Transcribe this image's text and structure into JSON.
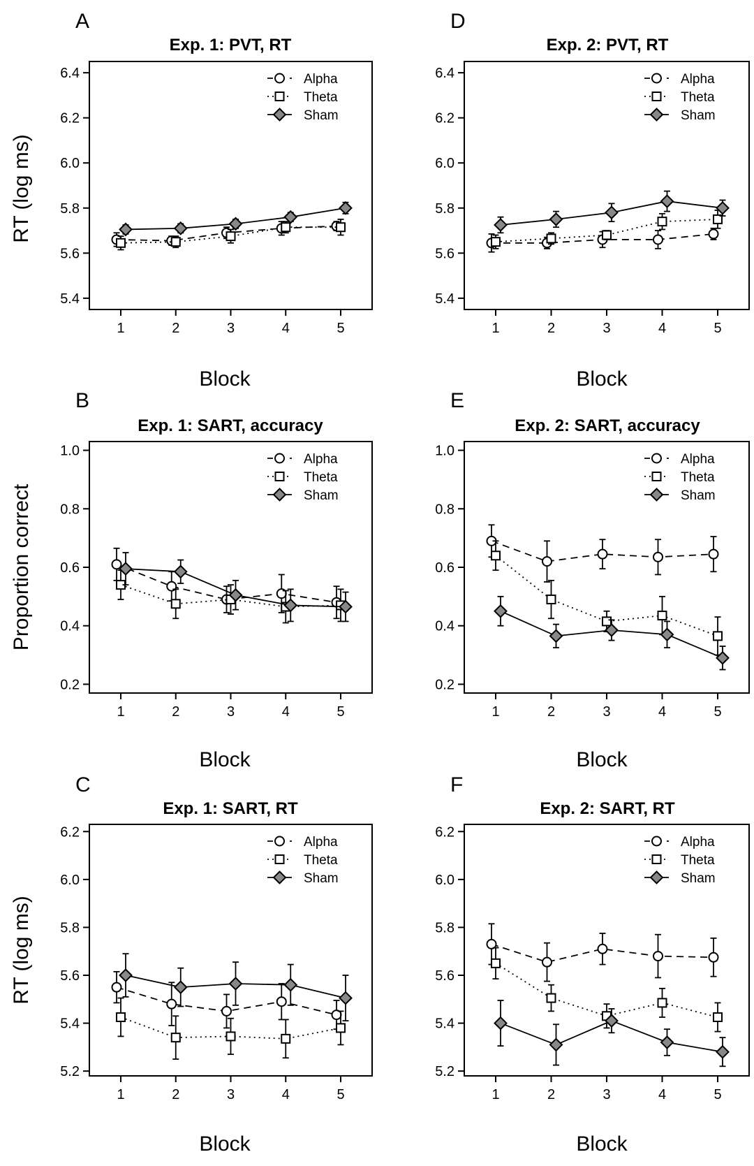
{
  "figure_colors": {
    "sham_fill": "#888888",
    "open_fill": "#ffffff",
    "stroke": "#000000"
  },
  "chart_data": [
    {
      "panel_label": "A",
      "type": "line",
      "title": "Exp. 1: PVT, RT",
      "xlabel": "Block",
      "ylabel": "RT (log ms)",
      "x": [
        1,
        2,
        3,
        4,
        5
      ],
      "xticks": [
        "1",
        "2",
        "3",
        "4",
        "5"
      ],
      "ylim": [
        5.35,
        6.45
      ],
      "yticks": [
        "5.4",
        "5.6",
        "5.8",
        "6.0",
        "6.2",
        "6.4"
      ],
      "legend_position": "top-right",
      "series": [
        {
          "name": "Alpha",
          "marker": "circle",
          "line": "dashed",
          "values": [
            5.66,
            5.655,
            5.69,
            5.71,
            5.72
          ],
          "err": [
            0.03,
            0.02,
            0.025,
            0.03,
            0.02
          ]
        },
        {
          "name": "Theta",
          "marker": "square",
          "line": "dotted",
          "values": [
            5.645,
            5.65,
            5.675,
            5.715,
            5.715
          ],
          "err": [
            0.03,
            0.025,
            0.03,
            0.025,
            0.035
          ]
        },
        {
          "name": "Sham",
          "marker": "diamond",
          "line": "solid",
          "values": [
            5.705,
            5.71,
            5.73,
            5.76,
            5.8
          ],
          "err": [
            0.02,
            0.02,
            0.02,
            0.02,
            0.025
          ]
        }
      ]
    },
    {
      "panel_label": "B",
      "type": "line",
      "title": "Exp. 1: SART, accuracy",
      "xlabel": "Block",
      "ylabel": "Proportion correct",
      "x": [
        1,
        2,
        3,
        4,
        5
      ],
      "xticks": [
        "1",
        "2",
        "3",
        "4",
        "5"
      ],
      "ylim": [
        0.17,
        1.03
      ],
      "yticks": [
        "0.2",
        "0.4",
        "0.6",
        "0.8",
        "1.0"
      ],
      "legend_position": "top-right",
      "series": [
        {
          "name": "Alpha",
          "marker": "circle",
          "line": "dashed",
          "values": [
            0.61,
            0.535,
            0.49,
            0.51,
            0.48
          ],
          "err": [
            0.055,
            0.05,
            0.045,
            0.065,
            0.055
          ]
        },
        {
          "name": "Theta",
          "marker": "square",
          "line": "dotted",
          "values": [
            0.54,
            0.475,
            0.49,
            0.465,
            0.47
          ],
          "err": [
            0.05,
            0.05,
            0.05,
            0.055,
            0.055
          ]
        },
        {
          "name": "Sham",
          "marker": "diamond",
          "line": "solid",
          "values": [
            0.595,
            0.585,
            0.505,
            0.47,
            0.465
          ],
          "err": [
            0.055,
            0.04,
            0.05,
            0.055,
            0.05
          ]
        }
      ]
    },
    {
      "panel_label": "C",
      "type": "line",
      "title": "Exp. 1: SART, RT",
      "xlabel": "Block",
      "ylabel": "RT (log ms)",
      "x": [
        1,
        2,
        3,
        4,
        5
      ],
      "xticks": [
        "1",
        "2",
        "3",
        "4",
        "5"
      ],
      "ylim": [
        5.18,
        6.23
      ],
      "yticks": [
        "5.2",
        "5.4",
        "5.6",
        "5.8",
        "6.0",
        "6.2"
      ],
      "legend_position": "top-right",
      "series": [
        {
          "name": "Alpha",
          "marker": "circle",
          "line": "dashed",
          "values": [
            5.55,
            5.48,
            5.45,
            5.49,
            5.435
          ],
          "err": [
            0.065,
            0.09,
            0.07,
            0.075,
            0.06
          ]
        },
        {
          "name": "Theta",
          "marker": "square",
          "line": "dotted",
          "values": [
            5.425,
            5.34,
            5.345,
            5.335,
            5.38
          ],
          "err": [
            0.08,
            0.09,
            0.075,
            0.08,
            0.07
          ]
        },
        {
          "name": "Sham",
          "marker": "diamond",
          "line": "solid",
          "values": [
            5.6,
            5.55,
            5.565,
            5.56,
            5.505
          ],
          "err": [
            0.09,
            0.08,
            0.09,
            0.085,
            0.095
          ]
        }
      ]
    },
    {
      "panel_label": "D",
      "type": "line",
      "title": "Exp. 2: PVT, RT",
      "xlabel": "Block",
      "ylabel": "",
      "x": [
        1,
        2,
        3,
        4,
        5
      ],
      "xticks": [
        "1",
        "2",
        "3",
        "4",
        "5"
      ],
      "ylim": [
        5.35,
        6.45
      ],
      "yticks": [
        "5.4",
        "5.6",
        "5.8",
        "6.0",
        "6.2",
        "6.4"
      ],
      "legend_position": "top-right",
      "series": [
        {
          "name": "Alpha",
          "marker": "circle",
          "line": "dashed",
          "values": [
            5.645,
            5.645,
            5.66,
            5.66,
            5.685
          ],
          "err": [
            0.04,
            0.025,
            0.035,
            0.04,
            0.025
          ]
        },
        {
          "name": "Theta",
          "marker": "square",
          "line": "dotted",
          "values": [
            5.65,
            5.665,
            5.68,
            5.74,
            5.75
          ],
          "err": [
            0.03,
            0.025,
            0.02,
            0.035,
            0.04
          ]
        },
        {
          "name": "Sham",
          "marker": "diamond",
          "line": "solid",
          "values": [
            5.725,
            5.75,
            5.78,
            5.83,
            5.8
          ],
          "err": [
            0.035,
            0.035,
            0.04,
            0.045,
            0.035
          ]
        }
      ]
    },
    {
      "panel_label": "E",
      "type": "line",
      "title": "Exp. 2: SART, accuracy",
      "xlabel": "Block",
      "ylabel": "",
      "x": [
        1,
        2,
        3,
        4,
        5
      ],
      "xticks": [
        "1",
        "2",
        "3",
        "4",
        "5"
      ],
      "ylim": [
        0.17,
        1.03
      ],
      "yticks": [
        "0.2",
        "0.4",
        "0.6",
        "0.8",
        "1.0"
      ],
      "legend_position": "top-right",
      "series": [
        {
          "name": "Alpha",
          "marker": "circle",
          "line": "dashed",
          "values": [
            0.69,
            0.62,
            0.645,
            0.635,
            0.645
          ],
          "err": [
            0.055,
            0.07,
            0.05,
            0.06,
            0.06
          ]
        },
        {
          "name": "Theta",
          "marker": "square",
          "line": "dotted",
          "values": [
            0.64,
            0.49,
            0.415,
            0.435,
            0.365
          ],
          "err": [
            0.05,
            0.065,
            0.035,
            0.065,
            0.065
          ]
        },
        {
          "name": "Sham",
          "marker": "diamond",
          "line": "solid",
          "values": [
            0.45,
            0.365,
            0.385,
            0.37,
            0.29
          ],
          "err": [
            0.05,
            0.04,
            0.035,
            0.045,
            0.04
          ]
        }
      ]
    },
    {
      "panel_label": "F",
      "type": "line",
      "title": "Exp. 2: SART, RT",
      "xlabel": "Block",
      "ylabel": "",
      "x": [
        1,
        2,
        3,
        4,
        5
      ],
      "xticks": [
        "1",
        "2",
        "3",
        "4",
        "5"
      ],
      "ylim": [
        5.18,
        6.23
      ],
      "yticks": [
        "5.2",
        "5.4",
        "5.6",
        "5.8",
        "6.0",
        "6.2"
      ],
      "legend_position": "top-right",
      "series": [
        {
          "name": "Alpha",
          "marker": "circle",
          "line": "dashed",
          "values": [
            5.73,
            5.655,
            5.71,
            5.68,
            5.675
          ],
          "err": [
            0.085,
            0.08,
            0.065,
            0.09,
            0.08
          ]
        },
        {
          "name": "Theta",
          "marker": "square",
          "line": "dotted",
          "values": [
            5.65,
            5.505,
            5.43,
            5.485,
            5.425
          ],
          "err": [
            0.065,
            0.055,
            0.05,
            0.06,
            0.06
          ]
        },
        {
          "name": "Sham",
          "marker": "diamond",
          "line": "solid",
          "values": [
            5.4,
            5.31,
            5.41,
            5.32,
            5.28
          ],
          "err": [
            0.095,
            0.085,
            0.05,
            0.055,
            0.06
          ]
        }
      ]
    }
  ]
}
